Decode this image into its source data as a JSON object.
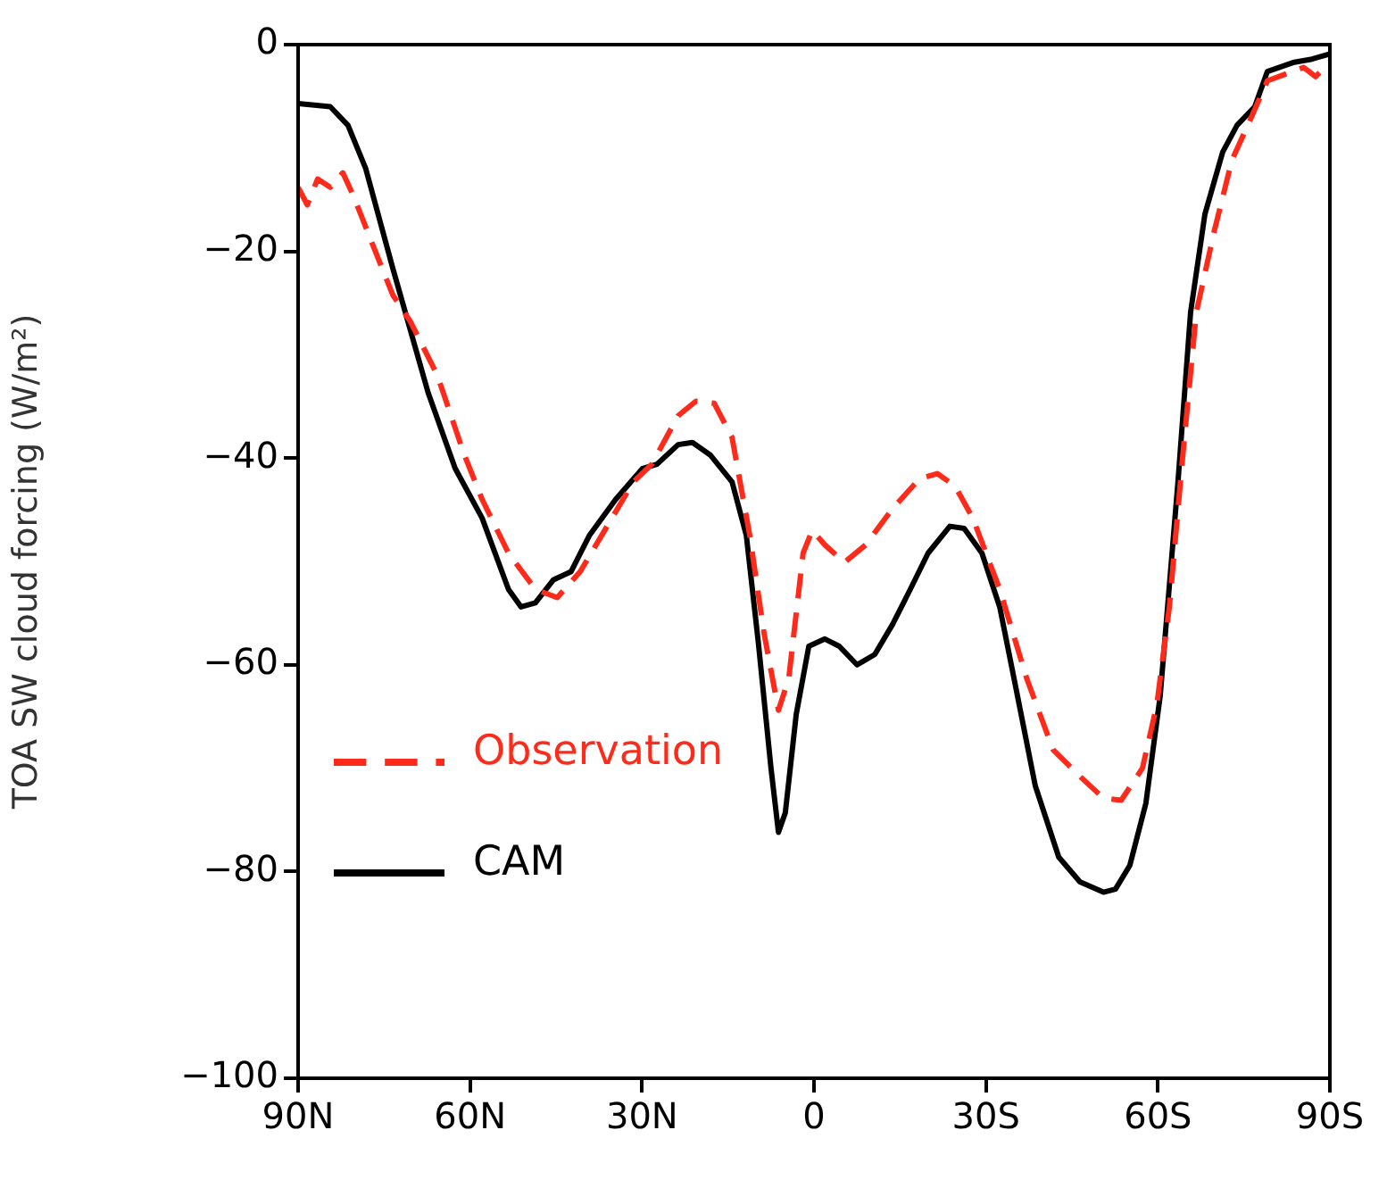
{
  "chart_data": {
    "type": "line",
    "ylabel": "TOA SW cloud forcing (W/m²)",
    "xlim": [
      90,
      -90
    ],
    "xticks": [
      {
        "value": 90,
        "label": "90N"
      },
      {
        "value": 60,
        "label": "60N"
      },
      {
        "value": 30,
        "label": "30N"
      },
      {
        "value": 0,
        "label": "0"
      },
      {
        "value": -30,
        "label": "30S"
      },
      {
        "value": -60,
        "label": "60S"
      },
      {
        "value": -90,
        "label": "90S"
      }
    ],
    "ylim": [
      -100,
      0
    ],
    "yticks": [
      -100,
      -80,
      -60,
      -40,
      -20,
      0
    ],
    "grid": false,
    "legend": "bottom left",
    "marker": "none",
    "series": [
      {
        "name": "Observation",
        "color": "#ff2a1a",
        "line_style": "dashed",
        "x": [
          90,
          88.4,
          86.6,
          84.4,
          82.2,
          80.3,
          76.6,
          73.5,
          70.4,
          65.7,
          61,
          57.9,
          53.3,
          48.6,
          44.8,
          40.8,
          36.1,
          31.5,
          28.3,
          23.7,
          20.6,
          17.4,
          14.3,
          11.2,
          8.7,
          6.2,
          4.4,
          1.9,
          0.3,
          -1.9,
          -5.3,
          -9,
          -13.7,
          -18.4,
          -21.5,
          -24.6,
          -27.7,
          -32.4,
          -37.1,
          -41.7,
          -46.4,
          -50.5,
          -53.6,
          -57.3,
          -59.8,
          -62,
          -64.2,
          -66.7,
          -69.8,
          -72.9,
          -76,
          -79.1,
          -85.4,
          -87.5,
          -90
        ],
        "values": [
          -13.8,
          -15.5,
          -13,
          -13.8,
          -12.4,
          -14.7,
          -19.9,
          -24.2,
          -26.8,
          -32,
          -39.7,
          -44,
          -49.2,
          -52.7,
          -53.5,
          -51,
          -46.6,
          -42.3,
          -40.6,
          -35.9,
          -34.5,
          -34.7,
          -38,
          -47.5,
          -57,
          -64.4,
          -61.3,
          -49.2,
          -47,
          -48.4,
          -50.1,
          -48.4,
          -44.9,
          -42,
          -41.5,
          -42.7,
          -45.8,
          -52.7,
          -61.3,
          -68.2,
          -70.8,
          -72.9,
          -73.1,
          -70,
          -63.9,
          -54.4,
          -40.6,
          -25.9,
          -18.1,
          -11.2,
          -7.4,
          -3.5,
          -2.2,
          -3.1,
          -1.7
        ]
      },
      {
        "name": "CAM",
        "color": "#000000",
        "line_style": "solid",
        "x": [
          90,
          84.4,
          81.3,
          78.2,
          73.5,
          67.3,
          62.6,
          57.9,
          53.3,
          51.1,
          48.6,
          45.5,
          42.4,
          39.2,
          34.6,
          29.9,
          27.4,
          23.7,
          21.2,
          18.1,
          14.3,
          11.8,
          9.7,
          7.5,
          6.2,
          5,
          3.1,
          0.9,
          -1.9,
          -4.4,
          -7.5,
          -10.6,
          -13.7,
          -16.8,
          -19.9,
          -23.7,
          -26.2,
          -29.3,
          -32.4,
          -35.5,
          -38.6,
          -42.7,
          -46.4,
          -50.5,
          -52.6,
          -55.1,
          -57.9,
          -60.4,
          -63.5,
          -65.7,
          -68.2,
          -71.3,
          -73.8,
          -76.9,
          -79.1,
          -83.8,
          -86.9,
          -90
        ],
        "values": [
          -5.7,
          -6,
          -7.8,
          -12,
          -21.6,
          -33.7,
          -41,
          -45.8,
          -52.7,
          -54.4,
          -54,
          -51.8,
          -51,
          -47.5,
          -44,
          -41,
          -40.6,
          -38.7,
          -38.5,
          -39.7,
          -42.3,
          -47.5,
          -57.9,
          -70,
          -76.2,
          -74.3,
          -64.8,
          -58.2,
          -57.5,
          -58.2,
          -60,
          -59,
          -56.1,
          -52.7,
          -49.2,
          -46.6,
          -46.8,
          -49.2,
          -54.4,
          -63,
          -71.7,
          -78.6,
          -81,
          -82,
          -81.7,
          -79.4,
          -73.4,
          -63,
          -42.3,
          -25.9,
          -16.4,
          -10.4,
          -7.8,
          -6,
          -2.6,
          -1.7,
          -1.4,
          -0.9
        ]
      }
    ]
  }
}
